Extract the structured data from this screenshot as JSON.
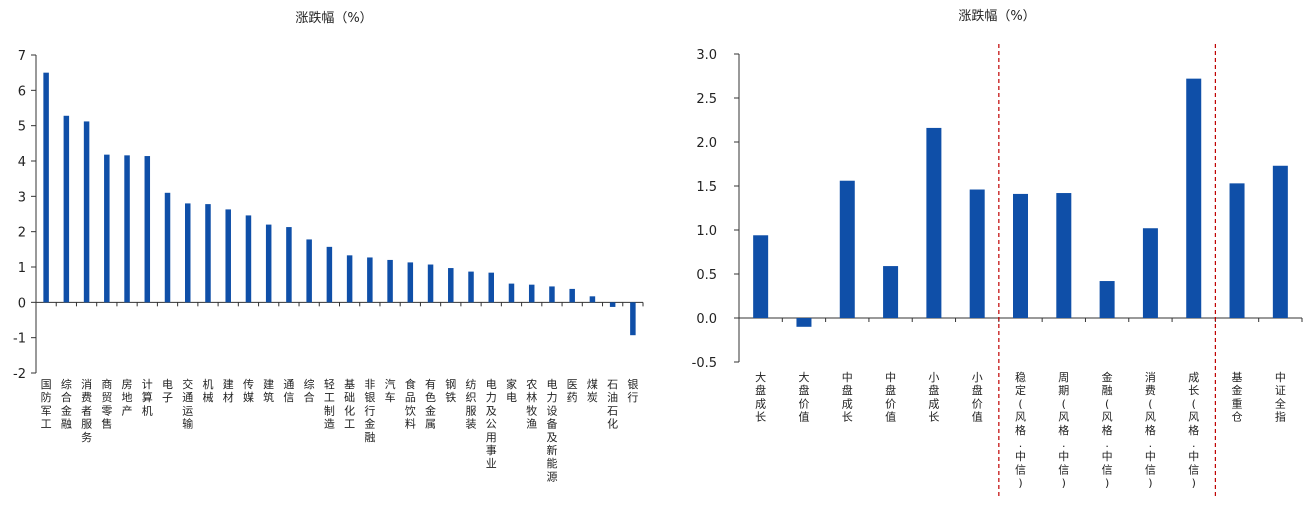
{
  "colors": {
    "bar": "#0f4fa8",
    "axis": "#333333",
    "divider": "#c00000"
  },
  "chart_data": [
    {
      "type": "bar",
      "title": "涨跌幅（%）",
      "xlabel": "",
      "ylabel": "",
      "ylim": [
        -2,
        7
      ],
      "yticks": [
        "-2",
        "-1",
        "0",
        "1",
        "2",
        "3",
        "4",
        "5",
        "6",
        "7"
      ],
      "ytick_values": [
        -2,
        -1,
        0,
        1,
        2,
        3,
        4,
        5,
        6,
        7
      ],
      "grid": false,
      "legend": "none",
      "categories": [
        "国防军工",
        "综合金融",
        "消费者服务",
        "商贸零售",
        "房地产",
        "计算机",
        "电子",
        "交通运输",
        "机械",
        "建材",
        "传媒",
        "建筑",
        "通信",
        "综合",
        "轻工制造",
        "基础化工",
        "非银行金融",
        "汽车",
        "食品饮料",
        "有色金属",
        "钢铁",
        "纺织服装",
        "电力及公用事业",
        "家电",
        "农林牧渔",
        "电力设备及新能源",
        "医药",
        "煤炭",
        "石油石化",
        "银行"
      ],
      "values": [
        6.5,
        5.28,
        5.12,
        4.18,
        4.16,
        4.14,
        3.1,
        2.8,
        2.78,
        2.63,
        2.46,
        2.2,
        2.13,
        1.78,
        1.57,
        1.33,
        1.27,
        1.2,
        1.13,
        1.07,
        0.97,
        0.87,
        0.84,
        0.53,
        0.5,
        0.45,
        0.38,
        0.17,
        -0.13,
        -0.93
      ]
    },
    {
      "type": "bar",
      "title": "涨跌幅（%）",
      "xlabel": "",
      "ylabel": "",
      "ylim": [
        -0.5,
        3.0
      ],
      "yticks": [
        "-0.5",
        "0.0",
        "0.5",
        "1.0",
        "1.5",
        "2.0",
        "2.5",
        "3.0"
      ],
      "ytick_values": [
        -0.5,
        0,
        0.5,
        1.0,
        1.5,
        2.0,
        2.5,
        3.0
      ],
      "grid": false,
      "legend": "none",
      "categories": [
        "大盘成长",
        "大盘价值",
        "中盘成长",
        "中盘价值",
        "小盘成长",
        "小盘价值",
        "稳定(风格.中信)",
        "周期(风格.中信)",
        "金融(风格.中信)",
        "消费(风格.中信)",
        "成长(风格.中信)",
        "基金重仓",
        "中证全指"
      ],
      "values": [
        0.94,
        -0.1,
        1.56,
        0.59,
        2.16,
        1.46,
        1.41,
        1.42,
        0.42,
        1.02,
        2.72,
        1.53,
        1.73
      ],
      "dividers_after_index": [
        5,
        10
      ]
    }
  ]
}
